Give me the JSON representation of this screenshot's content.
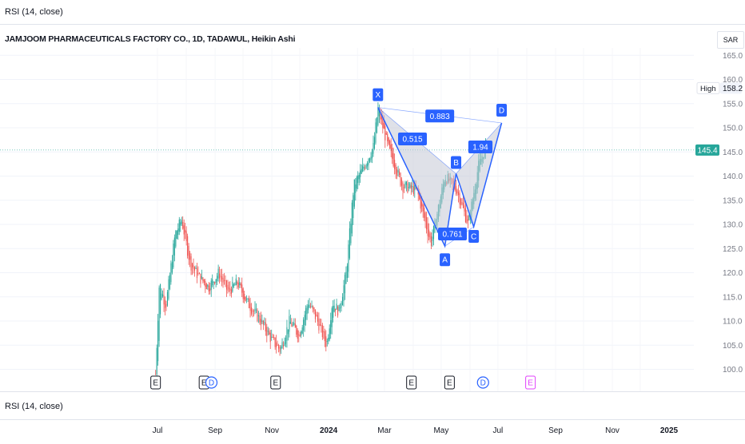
{
  "top_pane": {
    "indicator_label": "RSI (14, close)"
  },
  "bottom_pane": {
    "indicator_label": "RSI (14, close)"
  },
  "chart": {
    "title": "JAMJOOM PHARMACEUTICALS FACTORY CO., 1D, TADAWUL, Heikin Ashi",
    "currency": "SAR",
    "high_label": "High",
    "high_value": "158.2",
    "last_price": "145.4",
    "colors": {
      "up": "#26a69a",
      "down": "#ef5350",
      "pattern": "#2962ff",
      "last_price": "#26a69a"
    }
  },
  "chart_data": {
    "type": "candlestick",
    "style": "Heikin Ashi",
    "price_axis": [
      "165.0",
      "160.0",
      "155.0",
      "150.0",
      "145.0",
      "140.0",
      "135.0",
      "130.0",
      "125.0",
      "120.0",
      "115.0",
      "110.0",
      "105.0",
      "100.0"
    ],
    "ylim": [
      97,
      167
    ],
    "time_axis": [
      "Jul",
      "Sep",
      "Nov",
      "2024",
      "Mar",
      "May",
      "Jul",
      "Sep",
      "Nov",
      "2025"
    ],
    "close_path": [
      {
        "x": "2023-06-29",
        "y": 99
      },
      {
        "x": "2023-07-03",
        "y": 118
      },
      {
        "x": "2023-07-10",
        "y": 113
      },
      {
        "x": "2023-07-20",
        "y": 128
      },
      {
        "x": "2023-07-27",
        "y": 131
      },
      {
        "x": "2023-08-05",
        "y": 122
      },
      {
        "x": "2023-08-15",
        "y": 119
      },
      {
        "x": "2023-08-25",
        "y": 117
      },
      {
        "x": "2023-09-05",
        "y": 120
      },
      {
        "x": "2023-09-15",
        "y": 116
      },
      {
        "x": "2023-09-25",
        "y": 118
      },
      {
        "x": "2023-10-05",
        "y": 114
      },
      {
        "x": "2023-10-20",
        "y": 110
      },
      {
        "x": "2023-11-01",
        "y": 106
      },
      {
        "x": "2023-11-10",
        "y": 104
      },
      {
        "x": "2023-11-20",
        "y": 110
      },
      {
        "x": "2023-11-30",
        "y": 107
      },
      {
        "x": "2023-12-10",
        "y": 114
      },
      {
        "x": "2023-12-20",
        "y": 110
      },
      {
        "x": "2023-12-30",
        "y": 105
      },
      {
        "x": "2024-01-05",
        "y": 114
      },
      {
        "x": "2024-01-12",
        "y": 112
      },
      {
        "x": "2024-01-20",
        "y": 120
      },
      {
        "x": "2024-01-28",
        "y": 138
      },
      {
        "x": "2024-02-08",
        "y": 142
      },
      {
        "x": "2024-02-18",
        "y": 146
      },
      {
        "x": "2024-02-23",
        "y": 154
      },
      {
        "x": "2024-03-05",
        "y": 146
      },
      {
        "x": "2024-03-20",
        "y": 138
      },
      {
        "x": "2024-04-05",
        "y": 137
      },
      {
        "x": "2024-04-20",
        "y": 126
      },
      {
        "x": "2024-05-05",
        "y": 140
      },
      {
        "x": "2024-05-18",
        "y": 137
      },
      {
        "x": "2024-05-30",
        "y": 130
      },
      {
        "x": "2024-06-10",
        "y": 142
      },
      {
        "x": "2024-06-19",
        "y": 147
      }
    ],
    "harmonic_pattern": {
      "points": [
        {
          "label": "X",
          "x": "2024-02-23",
          "y": 154.2
        },
        {
          "label": "A",
          "x": "2024-05-05",
          "y": 125.5
        },
        {
          "label": "B",
          "x": "2024-05-17",
          "y": 140.5
        },
        {
          "label": "C",
          "x": "2024-06-05",
          "y": 129.5
        },
        {
          "label": "D",
          "x": "2024-07-05",
          "y": 151.0
        }
      ],
      "ratios": {
        "AB_XA": "0.515",
        "BC_AB": "0.761",
        "CD_BC": "1.94",
        "XD_XA": "0.883"
      }
    },
    "events": [
      {
        "x": "2023-06-29",
        "label": "E",
        "kind": "earnings"
      },
      {
        "x": "2023-08-20",
        "label": "E",
        "kind": "earnings"
      },
      {
        "x": "2023-08-28",
        "label": "D",
        "kind": "dividend"
      },
      {
        "x": "2023-11-05",
        "label": "E",
        "kind": "earnings"
      },
      {
        "x": "2024-03-30",
        "label": "E",
        "kind": "earnings"
      },
      {
        "x": "2024-05-10",
        "label": "E",
        "kind": "earnings"
      },
      {
        "x": "2024-06-15",
        "label": "D",
        "kind": "dividend"
      },
      {
        "x": "2024-08-05",
        "label": "E",
        "kind": "earnings-upcoming"
      }
    ]
  }
}
